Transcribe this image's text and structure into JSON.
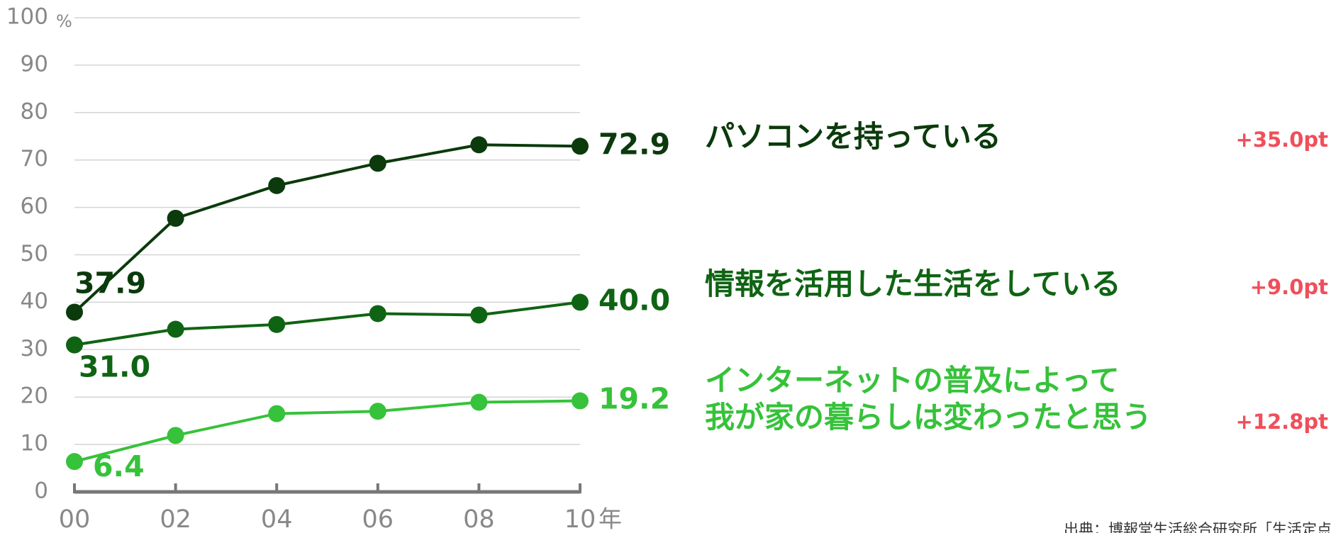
{
  "chart_data": {
    "type": "line",
    "categories": [
      "00",
      "02",
      "04",
      "06",
      "08",
      "10"
    ],
    "x_unit": "年",
    "y_unit": "%",
    "ylim": [
      0,
      100
    ],
    "yticks": [
      0,
      10,
      20,
      30,
      40,
      50,
      60,
      70,
      80,
      90,
      100
    ],
    "grid": true,
    "series": [
      {
        "name": "パソコンを持っている",
        "color": "#0b3a0c",
        "values": [
          37.9,
          57.7,
          64.6,
          69.3,
          73.2,
          72.9
        ],
        "value_labels": [
          "37.9",
          null,
          null,
          null,
          null,
          "72.9"
        ],
        "change_label": "+35.0pt"
      },
      {
        "name": "情報を活用した生活をしている",
        "color": "#0f6413",
        "values": [
          31.0,
          34.3,
          35.3,
          37.6,
          37.3,
          40.0
        ],
        "value_labels": [
          "31.0",
          null,
          null,
          null,
          null,
          "40.0"
        ],
        "change_label": "+9.0pt"
      },
      {
        "name": "インターネットの普及によって\n我が家の暮らしは変わったと思う",
        "color": "#36c23a",
        "values": [
          6.4,
          11.9,
          16.5,
          17.0,
          18.9,
          19.2
        ],
        "value_labels": [
          "6.4",
          null,
          null,
          null,
          null,
          "19.2"
        ],
        "change_label": "+12.8pt"
      }
    ],
    "source": "出典：博報堂生活総合研究所「生活定点」調査"
  }
}
